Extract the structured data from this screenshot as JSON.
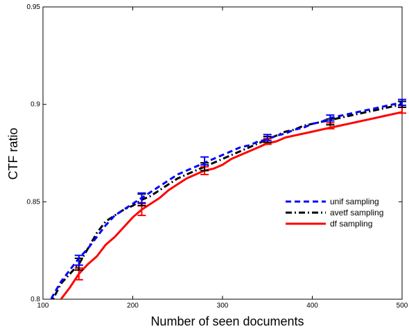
{
  "chart_data": {
    "type": "line",
    "xlabel": "Number of seen documents",
    "ylabel": "CTF ratio",
    "xlim": [
      100,
      500
    ],
    "ylim": [
      0.8,
      0.95
    ],
    "x_ticks": [
      "100",
      "200",
      "300",
      "400",
      "500"
    ],
    "y_ticks": [
      "0.8",
      "0.85",
      "0.9",
      "0.95"
    ],
    "legend_position": "center-right",
    "series": [
      {
        "name": "unif sampling",
        "color": "#0000ff",
        "style": "dashed",
        "x": [
          100,
          110,
          120,
          130,
          140,
          150,
          160,
          170,
          180,
          190,
          200,
          210,
          220,
          230,
          240,
          250,
          260,
          270,
          280,
          290,
          300,
          310,
          320,
          330,
          340,
          350,
          360,
          370,
          380,
          390,
          400,
          410,
          420,
          430,
          440,
          450,
          460,
          470,
          480,
          490,
          500
        ],
        "y": [
          0.792,
          0.801,
          0.809,
          0.815,
          0.821,
          0.826,
          0.832,
          0.838,
          0.843,
          0.846,
          0.849,
          0.852,
          0.855,
          0.858,
          0.861,
          0.864,
          0.866,
          0.868,
          0.87,
          0.872,
          0.874,
          0.876,
          0.878,
          0.879,
          0.881,
          0.882,
          0.884,
          0.885,
          0.887,
          0.888,
          0.89,
          0.891,
          0.893,
          0.894,
          0.895,
          0.896,
          0.897,
          0.898,
          0.899,
          0.9,
          0.901
        ],
        "error_x": [
          140,
          210,
          280,
          350,
          420,
          500
        ],
        "error_y": [
          0.82,
          0.852,
          0.871,
          0.883,
          0.893,
          0.901
        ],
        "error_half": [
          0.0025,
          0.0025,
          0.002,
          0.0015,
          0.0015,
          0.0015
        ]
      },
      {
        "name": "avetf sampling",
        "color": "#000000",
        "style": "dashdot",
        "x": [
          100,
          110,
          120,
          130,
          140,
          150,
          160,
          170,
          180,
          190,
          200,
          210,
          220,
          230,
          240,
          250,
          260,
          270,
          280,
          290,
          300,
          310,
          320,
          330,
          340,
          350,
          360,
          370,
          380,
          390,
          400,
          410,
          420,
          430,
          440,
          450,
          460,
          470,
          480,
          490,
          500
        ],
        "y": [
          0.79,
          0.799,
          0.808,
          0.813,
          0.818,
          0.826,
          0.834,
          0.84,
          0.843,
          0.846,
          0.848,
          0.851,
          0.853,
          0.856,
          0.859,
          0.862,
          0.864,
          0.866,
          0.868,
          0.87,
          0.872,
          0.874,
          0.876,
          0.878,
          0.88,
          0.882,
          0.884,
          0.886,
          0.887,
          0.889,
          0.89,
          0.891,
          0.892,
          0.893,
          0.894,
          0.895,
          0.896,
          0.897,
          0.898,
          0.899,
          0.9
        ],
        "error_x": [
          140,
          210,
          280,
          350,
          420,
          500
        ],
        "error_y": [
          0.818,
          0.851,
          0.868,
          0.882,
          0.891,
          0.9
        ],
        "error_half": [
          0.003,
          0.003,
          0.002,
          0.0015,
          0.0015,
          0.0015
        ]
      },
      {
        "name": "df sampling",
        "color": "#ff0000",
        "style": "solid",
        "x": [
          100,
          110,
          120,
          130,
          140,
          150,
          160,
          170,
          180,
          190,
          200,
          210,
          220,
          230,
          240,
          250,
          260,
          270,
          280,
          290,
          300,
          310,
          320,
          330,
          340,
          350,
          360,
          370,
          380,
          390,
          400,
          410,
          420,
          430,
          440,
          450,
          460,
          470,
          480,
          490,
          500
        ],
        "y": [
          0.78,
          0.79,
          0.8,
          0.806,
          0.813,
          0.818,
          0.822,
          0.828,
          0.832,
          0.837,
          0.842,
          0.846,
          0.849,
          0.852,
          0.856,
          0.859,
          0.862,
          0.864,
          0.866,
          0.867,
          0.869,
          0.872,
          0.874,
          0.876,
          0.878,
          0.88,
          0.881,
          0.883,
          0.884,
          0.885,
          0.886,
          0.887,
          0.888,
          0.889,
          0.89,
          0.891,
          0.892,
          0.893,
          0.894,
          0.895,
          0.896
        ],
        "error_x": [
          140,
          210,
          280,
          350,
          420,
          500
        ],
        "error_y": [
          0.813,
          0.846,
          0.866,
          0.881,
          0.889,
          0.897
        ],
        "error_half": [
          0.003,
          0.003,
          0.002,
          0.0015,
          0.0015,
          0.0015
        ]
      }
    ]
  }
}
